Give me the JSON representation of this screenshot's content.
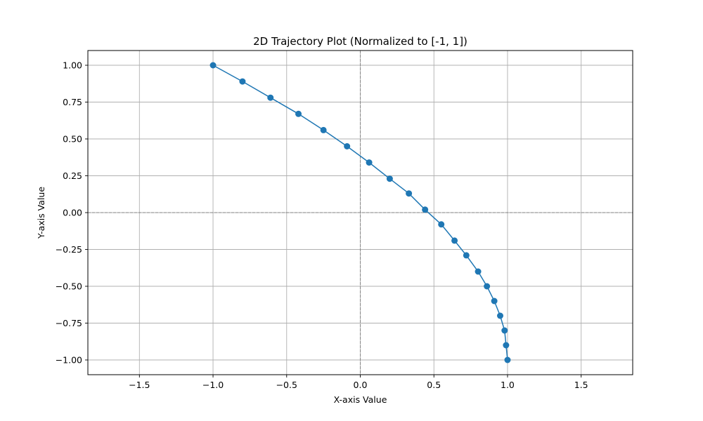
{
  "chart_data": {
    "type": "line",
    "title": "2D Trajectory Plot (Normalized to [-1, 1])",
    "xlabel": "X-axis Value",
    "ylabel": "Y-axis Value",
    "xlim": [
      -1.85,
      1.85
    ],
    "ylim": [
      -1.1,
      1.1
    ],
    "xticks": [
      -1.5,
      -1.0,
      -0.5,
      0.0,
      0.5,
      1.0,
      1.5
    ],
    "xtick_labels": [
      "−1.5",
      "−1.0",
      "−0.5",
      "0.0",
      "0.5",
      "1.0",
      "1.5"
    ],
    "yticks": [
      1.0,
      0.75,
      0.5,
      0.25,
      0.0,
      -0.25,
      -0.5,
      -0.75,
      -1.0
    ],
    "ytick_labels": [
      "1.00",
      "0.75",
      "0.50",
      "0.25",
      "0.00",
      "−0.25",
      "−0.50",
      "−0.75",
      "−1.00"
    ],
    "grid": true,
    "reference_lines": {
      "x": 0,
      "y": 0,
      "style": "dashed",
      "color": "#808080"
    },
    "series": [
      {
        "color": "#1f77b4",
        "marker": "circle",
        "x": [
          -1.0,
          -0.8,
          -0.61,
          -0.42,
          -0.25,
          -0.09,
          0.06,
          0.2,
          0.33,
          0.44,
          0.55,
          0.64,
          0.72,
          0.8,
          0.86,
          0.91,
          0.95,
          0.98,
          0.99,
          1.0
        ],
        "y": [
          1.0,
          0.89,
          0.78,
          0.67,
          0.56,
          0.45,
          0.34,
          0.23,
          0.13,
          0.02,
          -0.08,
          -0.19,
          -0.29,
          -0.4,
          -0.5,
          -0.6,
          -0.7,
          -0.8,
          -0.9,
          -1.0
        ]
      }
    ]
  }
}
